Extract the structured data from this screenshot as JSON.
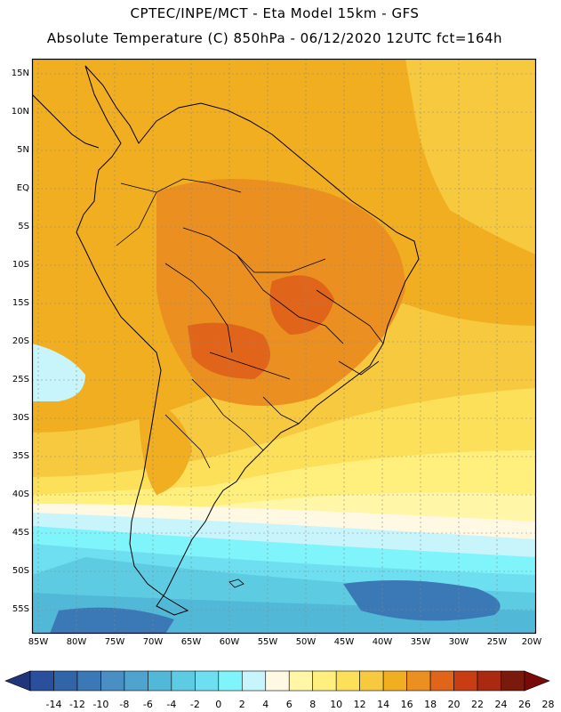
{
  "header": {
    "title_line1": "CPTEC/INPE/MCT -  Eta Model 15km - GFS",
    "title_line2": "Absolute Temperature (C) 850hPa - 06/12/2020 12UTC fct=164h"
  },
  "map": {
    "lat_labels": [
      "15N",
      "10N",
      "5N",
      "EQ",
      "5S",
      "10S",
      "15S",
      "20S",
      "25S",
      "30S",
      "35S",
      "40S",
      "45S",
      "50S",
      "55S"
    ],
    "lon_labels": [
      "85W",
      "80W",
      "75W",
      "70W",
      "65W",
      "60W",
      "55W",
      "50W",
      "45W",
      "40W",
      "35W",
      "30W",
      "25W",
      "20W"
    ],
    "colors": {
      "frame": "#000000",
      "grid": "#888888",
      "coast": "#000000"
    }
  },
  "colorbar": {
    "labels": [
      "-14",
      "-12",
      "-10",
      "-8",
      "-6",
      "-4",
      "-2",
      "0",
      "2",
      "4",
      "6",
      "8",
      "10",
      "12",
      "14",
      "16",
      "18",
      "20",
      "22",
      "24",
      "26",
      "28"
    ],
    "colors": [
      "#2a4f9c",
      "#3264a8",
      "#3b78b6",
      "#4a8fc4",
      "#4fa3cf",
      "#52b8d8",
      "#5dcce3",
      "#6edff0",
      "#80f4fb",
      "#c8f4fc",
      "#fff8e2",
      "#fff6a8",
      "#fff07d",
      "#fce05a",
      "#f7c93f",
      "#f0ae20",
      "#eb9020",
      "#e0651a",
      "#c83e12",
      "#a92a10",
      "#7a1a0c"
    ],
    "under_color": "#20357a",
    "over_color": "#7a0a0a"
  }
}
